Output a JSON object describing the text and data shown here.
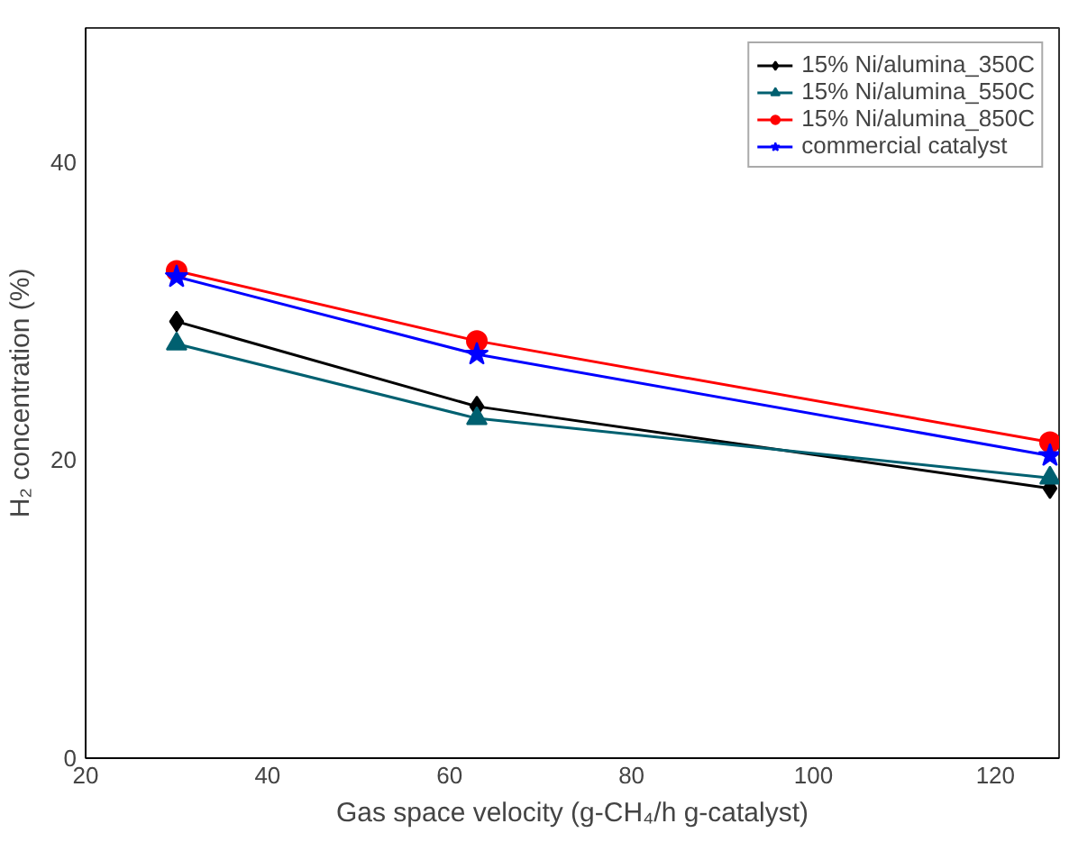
{
  "chart_data": {
    "type": "line",
    "xlabel": "Gas space velocity (g-CH₄/h g-catalyst)",
    "ylabel": "H₂ concentration (%)",
    "x": [
      30,
      63,
      126
    ],
    "xlim": [
      20,
      127
    ],
    "xticks": [
      20,
      40,
      60,
      80,
      100,
      120
    ],
    "ylim": [
      0,
      49
    ],
    "yticks": [
      0,
      20,
      40
    ],
    "grid": false,
    "legend": "top right",
    "series": [
      {
        "name": "15% Ni/alumina_350C",
        "color": "#000000",
        "marker": "diamond",
        "values": [
          29.3,
          23.6,
          18.1
        ]
      },
      {
        "name": "15% Ni/alumina_550C",
        "color": "#006070",
        "marker": "triangle",
        "values": [
          27.8,
          22.8,
          18.8
        ]
      },
      {
        "name": "15% Ni/alumina_850C",
        "color": "#ff0000",
        "marker": "circle",
        "values": [
          32.7,
          28.0,
          21.2
        ]
      },
      {
        "name": "commercial catalyst",
        "color": "#0000ff",
        "marker": "star",
        "values": [
          32.3,
          27.1,
          20.3
        ]
      }
    ]
  }
}
